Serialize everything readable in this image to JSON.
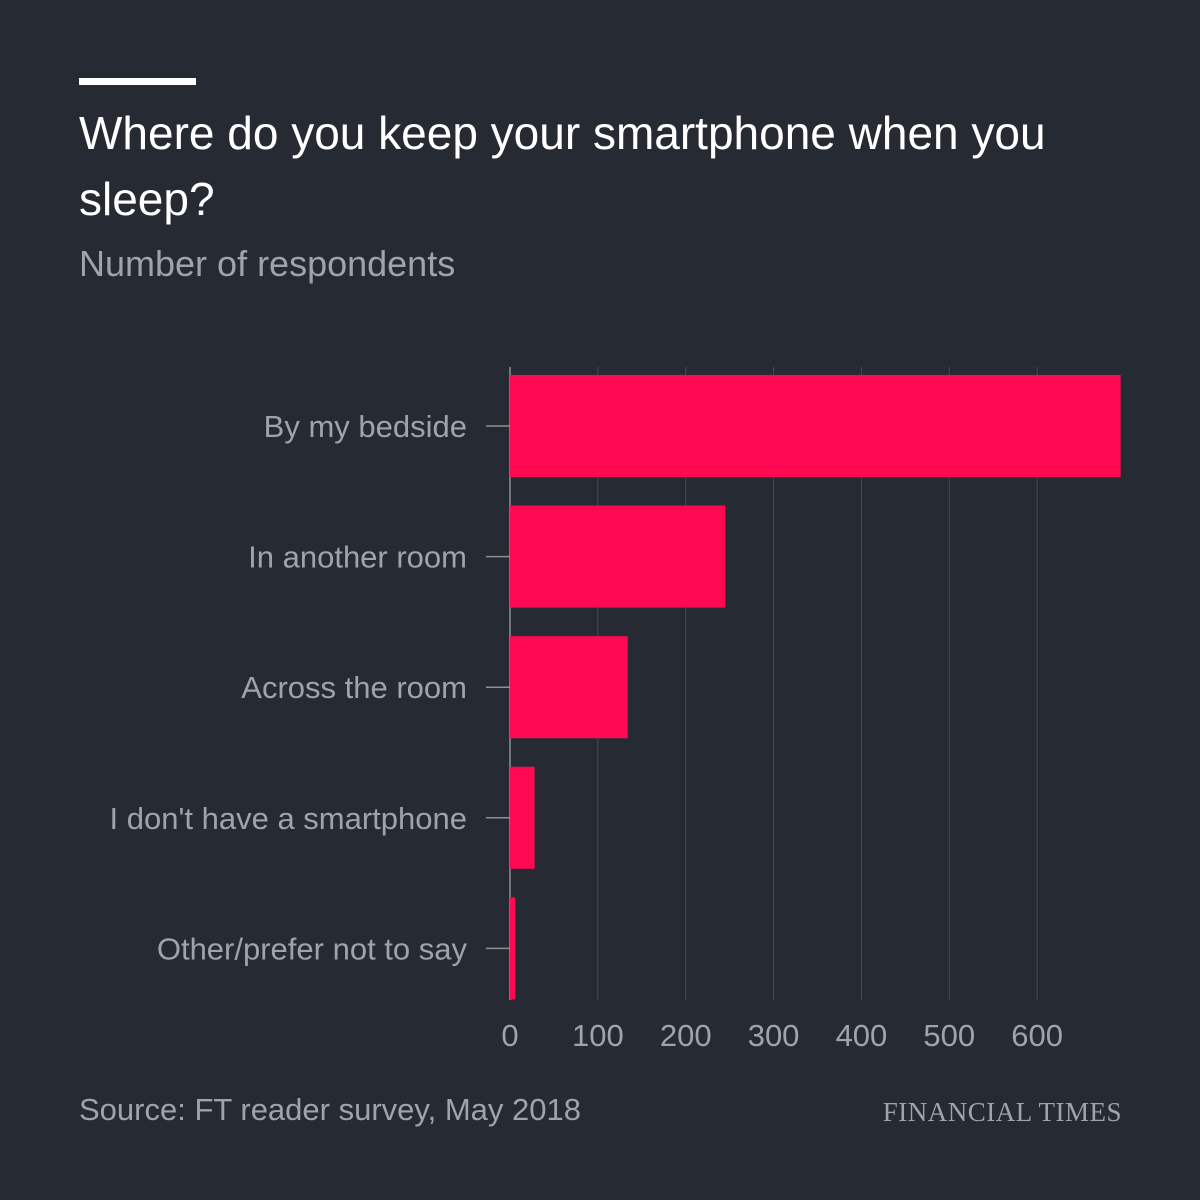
{
  "header": {
    "title": "Where do you keep your smartphone when you sleep?",
    "subtitle": "Number of respondents"
  },
  "footer": {
    "source": "Source: FT reader survey, May 2018",
    "brand": "FINANCIAL TIMES"
  },
  "colors": {
    "background": "#262a33",
    "bar": "#ff0a52",
    "gridline": "#474b53",
    "text_primary": "#ffffff",
    "text_secondary": "#a0a3a9"
  },
  "chart_data": {
    "type": "bar",
    "orientation": "horizontal",
    "title": "Where do you keep your smartphone when you sleep?",
    "subtitle": "Number of respondents",
    "categories": [
      "By my bedside",
      "In another room",
      "Across the room",
      "I don't have a smartphone",
      "Other/prefer not to say"
    ],
    "values": [
      695,
      245,
      134,
      28,
      6
    ],
    "xlim": [
      0,
      700
    ],
    "xticks": [
      0,
      100,
      200,
      300,
      400,
      500,
      600
    ],
    "grid": true,
    "source": "Source: FT reader survey, May 2018"
  }
}
